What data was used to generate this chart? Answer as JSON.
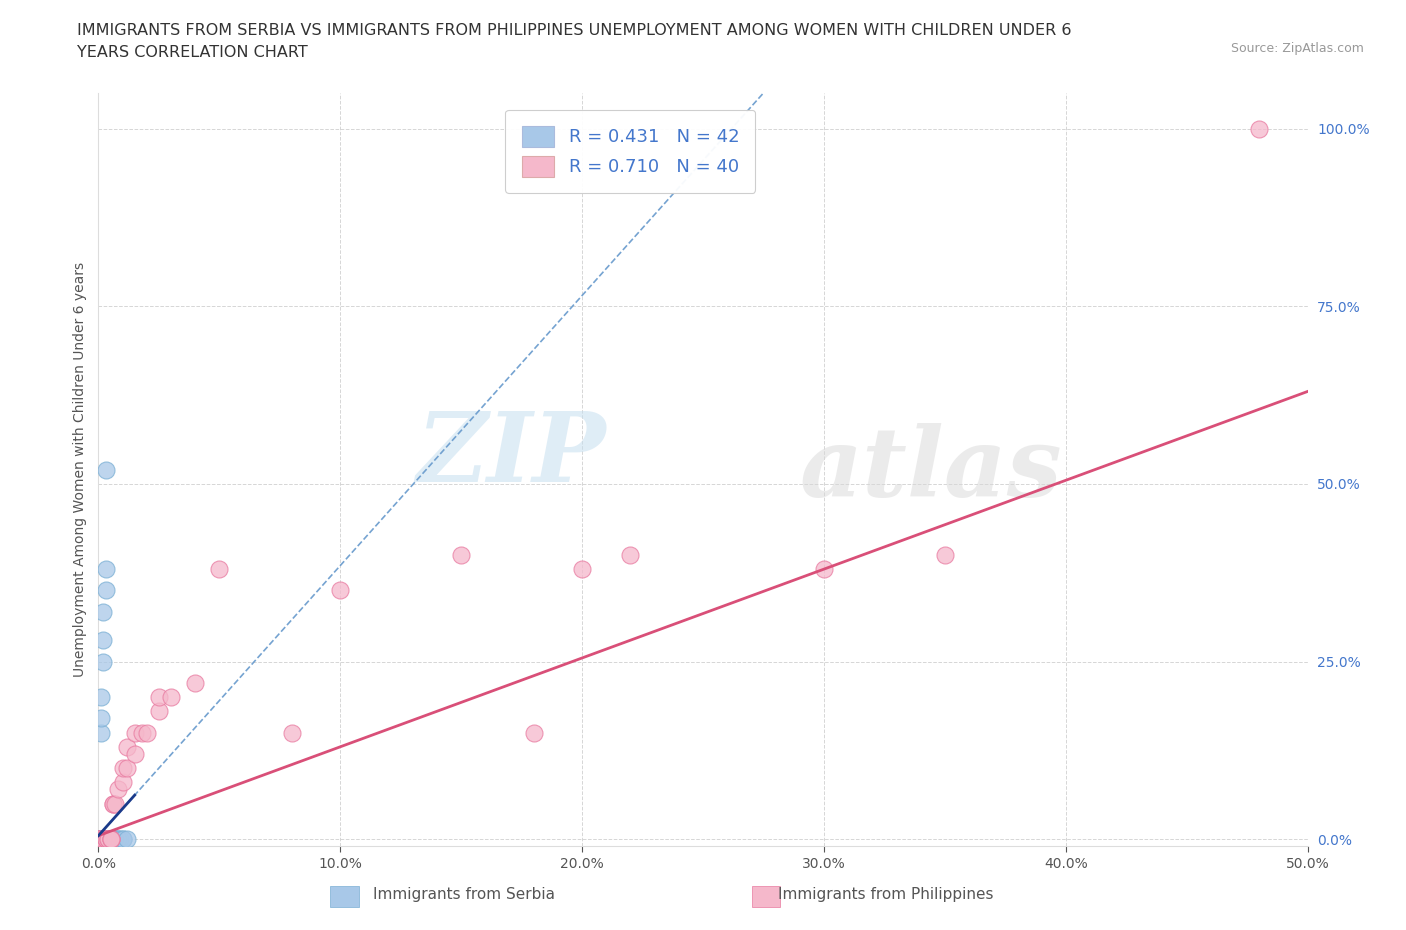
{
  "title_line1": "IMMIGRANTS FROM SERBIA VS IMMIGRANTS FROM PHILIPPINES UNEMPLOYMENT AMONG WOMEN WITH CHILDREN UNDER 6",
  "title_line2": "YEARS CORRELATION CHART",
  "source": "Source: ZipAtlas.com",
  "ylabel": "Unemployment Among Women with Children Under 6 years",
  "xlim": [
    0,
    0.5
  ],
  "ylim": [
    -0.01,
    1.05
  ],
  "serbia_color": "#a8c8e8",
  "serbia_edge_color": "#7aafd4",
  "philippines_color": "#f5b8cb",
  "philippines_edge_color": "#e87aa0",
  "serbia_line_color": "#6699cc",
  "serbia_line_color2": "#1a3a8a",
  "philippines_line_color": "#d94f78",
  "watermark_zip": "ZIP",
  "watermark_atlas": "atlas",
  "serbia_r": 0.431,
  "serbia_n": 42,
  "philippines_r": 0.71,
  "philippines_n": 40,
  "serbia_slope": 3.8,
  "serbia_intercept": 0.005,
  "philippines_slope": 1.25,
  "philippines_intercept": 0.005,
  "serbia_points": [
    [
      0.0,
      0.0
    ],
    [
      0.0,
      0.0
    ],
    [
      0.0,
      0.0
    ],
    [
      0.0,
      0.0
    ],
    [
      0.0,
      0.0
    ],
    [
      0.0,
      0.0
    ],
    [
      0.0,
      0.0
    ],
    [
      0.0,
      0.0
    ],
    [
      0.0,
      0.0
    ],
    [
      0.0,
      0.0
    ],
    [
      0.002,
      0.0
    ],
    [
      0.002,
      0.0
    ],
    [
      0.003,
      0.0
    ],
    [
      0.003,
      0.0
    ],
    [
      0.003,
      0.0
    ],
    [
      0.004,
      0.0
    ],
    [
      0.004,
      0.0
    ],
    [
      0.004,
      0.0
    ],
    [
      0.005,
      0.0
    ],
    [
      0.005,
      0.0
    ],
    [
      0.005,
      0.0
    ],
    [
      0.005,
      0.0
    ],
    [
      0.005,
      0.0
    ],
    [
      0.006,
      0.0
    ],
    [
      0.006,
      0.0
    ],
    [
      0.007,
      0.0
    ],
    [
      0.007,
      0.0
    ],
    [
      0.008,
      0.0
    ],
    [
      0.008,
      0.0
    ],
    [
      0.009,
      0.0
    ],
    [
      0.01,
      0.0
    ],
    [
      0.01,
      0.0
    ],
    [
      0.012,
      0.0
    ],
    [
      0.002,
      0.25
    ],
    [
      0.002,
      0.28
    ],
    [
      0.002,
      0.32
    ],
    [
      0.003,
      0.35
    ],
    [
      0.003,
      0.38
    ],
    [
      0.001,
      0.15
    ],
    [
      0.001,
      0.17
    ],
    [
      0.001,
      0.2
    ],
    [
      0.003,
      0.52
    ]
  ],
  "philippines_points": [
    [
      0.0,
      0.0
    ],
    [
      0.0,
      0.0
    ],
    [
      0.0,
      0.0
    ],
    [
      0.002,
      0.0
    ],
    [
      0.002,
      0.0
    ],
    [
      0.002,
      0.0
    ],
    [
      0.003,
      0.0
    ],
    [
      0.003,
      0.0
    ],
    [
      0.003,
      0.0
    ],
    [
      0.004,
      0.0
    ],
    [
      0.004,
      0.0
    ],
    [
      0.005,
      0.0
    ],
    [
      0.005,
      0.0
    ],
    [
      0.005,
      0.0
    ],
    [
      0.006,
      0.05
    ],
    [
      0.006,
      0.05
    ],
    [
      0.007,
      0.05
    ],
    [
      0.008,
      0.07
    ],
    [
      0.01,
      0.08
    ],
    [
      0.01,
      0.1
    ],
    [
      0.012,
      0.1
    ],
    [
      0.012,
      0.13
    ],
    [
      0.015,
      0.12
    ],
    [
      0.015,
      0.15
    ],
    [
      0.018,
      0.15
    ],
    [
      0.02,
      0.15
    ],
    [
      0.025,
      0.18
    ],
    [
      0.025,
      0.2
    ],
    [
      0.03,
      0.2
    ],
    [
      0.04,
      0.22
    ],
    [
      0.05,
      0.38
    ],
    [
      0.08,
      0.15
    ],
    [
      0.1,
      0.35
    ],
    [
      0.15,
      0.4
    ],
    [
      0.18,
      0.15
    ],
    [
      0.2,
      0.38
    ],
    [
      0.22,
      0.4
    ],
    [
      0.3,
      0.38
    ],
    [
      0.35,
      0.4
    ],
    [
      0.48,
      1.0
    ]
  ]
}
